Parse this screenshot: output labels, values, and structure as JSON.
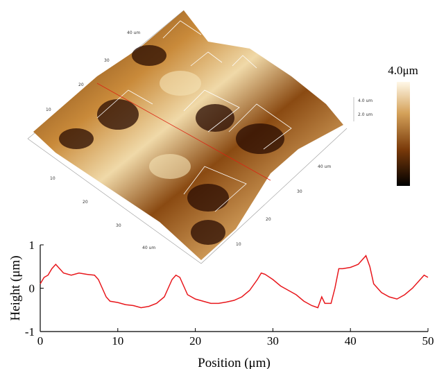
{
  "surface": {
    "back_left_axis": [
      "40 um",
      "30",
      "20",
      "10"
    ],
    "front_left_axis": [
      "10",
      "20",
      "30",
      "40 um"
    ],
    "front_right_axis": [
      "40 um",
      "30",
      "20",
      "10"
    ],
    "z_axis": [
      "4.0 um",
      "2.0 um"
    ],
    "colorbar_label": "4.0μm"
  },
  "chart_data": {
    "type": "line",
    "xlabel": "Position (μm)",
    "ylabel": "Height (μm)",
    "xlim": [
      0,
      50
    ],
    "xticks": [
      0,
      10,
      20,
      30,
      40,
      50
    ],
    "ylim": [
      -1,
      1
    ],
    "yticks": [
      -1,
      0,
      1
    ],
    "series": [
      {
        "color": "#e8161b",
        "x": [
          0,
          0.5,
          1,
          1.5,
          2,
          2.5,
          3,
          4,
          5,
          6,
          7,
          7.5,
          8,
          8.5,
          9,
          10,
          11,
          12,
          13,
          14,
          15,
          16,
          16.5,
          17,
          17.5,
          18,
          18.5,
          19,
          20,
          21,
          22,
          23,
          24,
          25,
          26,
          27,
          28,
          28.5,
          29,
          30,
          31,
          32,
          33,
          34,
          35,
          35.8,
          36.3,
          36.7,
          37.5,
          38,
          38.5,
          39,
          40,
          41,
          42,
          42.5,
          43,
          44,
          45,
          46,
          46.5,
          47,
          48,
          49,
          49.5,
          50
        ],
        "values": [
          0.1,
          0.25,
          0.3,
          0.45,
          0.55,
          0.45,
          0.35,
          0.3,
          0.35,
          0.32,
          0.3,
          0.2,
          0.0,
          -0.2,
          -0.3,
          -0.33,
          -0.38,
          -0.4,
          -0.45,
          -0.42,
          -0.35,
          -0.2,
          0.0,
          0.2,
          0.3,
          0.25,
          0.05,
          -0.15,
          -0.25,
          -0.3,
          -0.35,
          -0.35,
          -0.32,
          -0.28,
          -0.2,
          -0.05,
          0.2,
          0.35,
          0.32,
          0.2,
          0.05,
          -0.05,
          -0.15,
          -0.3,
          -0.4,
          -0.45,
          -0.2,
          -0.35,
          -0.35,
          0.0,
          0.45,
          0.45,
          0.48,
          0.55,
          0.75,
          0.5,
          0.1,
          -0.1,
          -0.2,
          -0.25,
          -0.2,
          -0.15,
          0.0,
          0.2,
          0.3,
          0.25
        ]
      }
    ]
  }
}
